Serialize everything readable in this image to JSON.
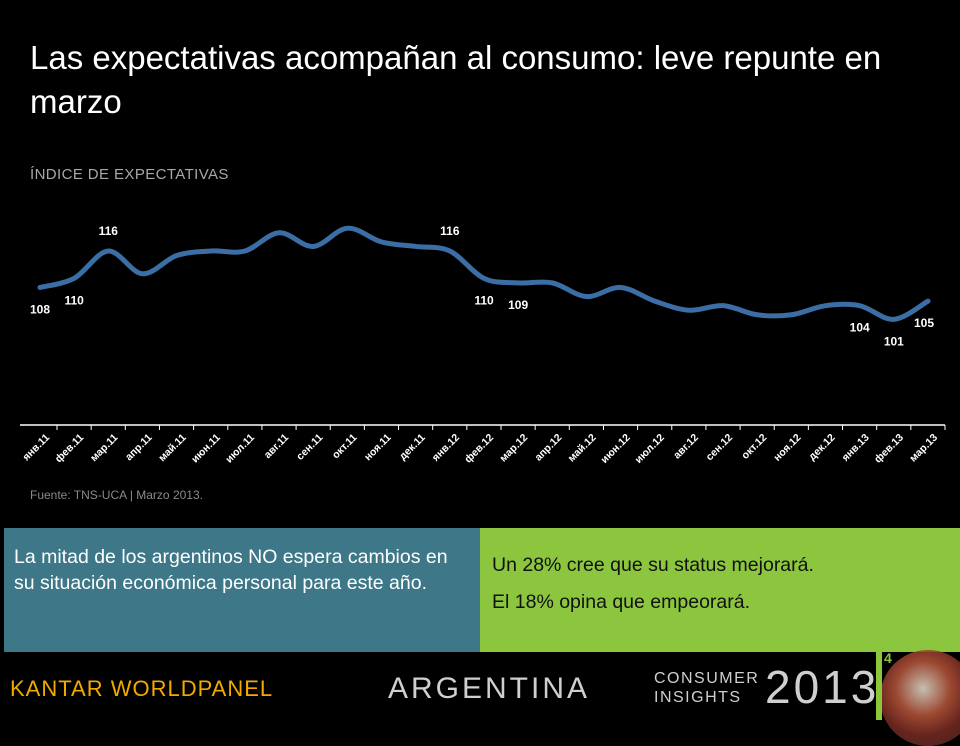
{
  "title": "Las expectativas acompañan al consumo: leve repunte en marzo",
  "footer": {
    "source": "Fuente: TNS-UCA | Marzo 2013.",
    "brand": "KANTAR WORLDPANEL",
    "country": "ARGENTINA",
    "consumer": "CONSUMER",
    "insights": "INSIGHTS",
    "year": "2013",
    "page": "4"
  },
  "boxes": {
    "left_text": "La mitad de los argentinos NO espera cambios en su situación económica personal para este año.",
    "right_line1": "Un 28% cree que su status mejorará.",
    "right_line2": "El 18% opina que empeorará."
  },
  "colors": {
    "line": "#3a6ea5",
    "box_left": "#3e7787",
    "box_right": "#8cc63f"
  },
  "chart_data": {
    "type": "line",
    "title": "ÍNDICE DE EXPECTATIVAS",
    "xlabel": "",
    "ylabel": "",
    "grid": false,
    "legend": "none",
    "categories": [
      "янв.11",
      "фев.11",
      "мар.11",
      "апр.11",
      "май.11",
      "июн.11",
      "июл.11",
      "авг.11",
      "сен.11",
      "окт.11",
      "ноя.11",
      "дек.11",
      "янв.12",
      "фев.12",
      "мар.12",
      "апр.12",
      "май.12",
      "июн.12",
      "июл.12",
      "авг.12",
      "сен.12",
      "окт.12",
      "ноя.12",
      "дек.12",
      "янв.13",
      "фев.13",
      "мар.13"
    ],
    "values": [
      108,
      110,
      116,
      111,
      115,
      116,
      116,
      120,
      117,
      121,
      118,
      117,
      116,
      110,
      109,
      109,
      106,
      108,
      105,
      103,
      104,
      102,
      102,
      104,
      104,
      101,
      105
    ],
    "data_labels": [
      {
        "index": 0,
        "text": "108"
      },
      {
        "index": 1,
        "text": "110"
      },
      {
        "index": 2,
        "text": "116"
      },
      {
        "index": 12,
        "text": "116"
      },
      {
        "index": 13,
        "text": "110"
      },
      {
        "index": 14,
        "text": "109"
      },
      {
        "index": 24,
        "text": "104"
      },
      {
        "index": 25,
        "text": "101"
      },
      {
        "index": 26,
        "text": "105"
      }
    ],
    "ylim": [
      80,
      125
    ]
  }
}
